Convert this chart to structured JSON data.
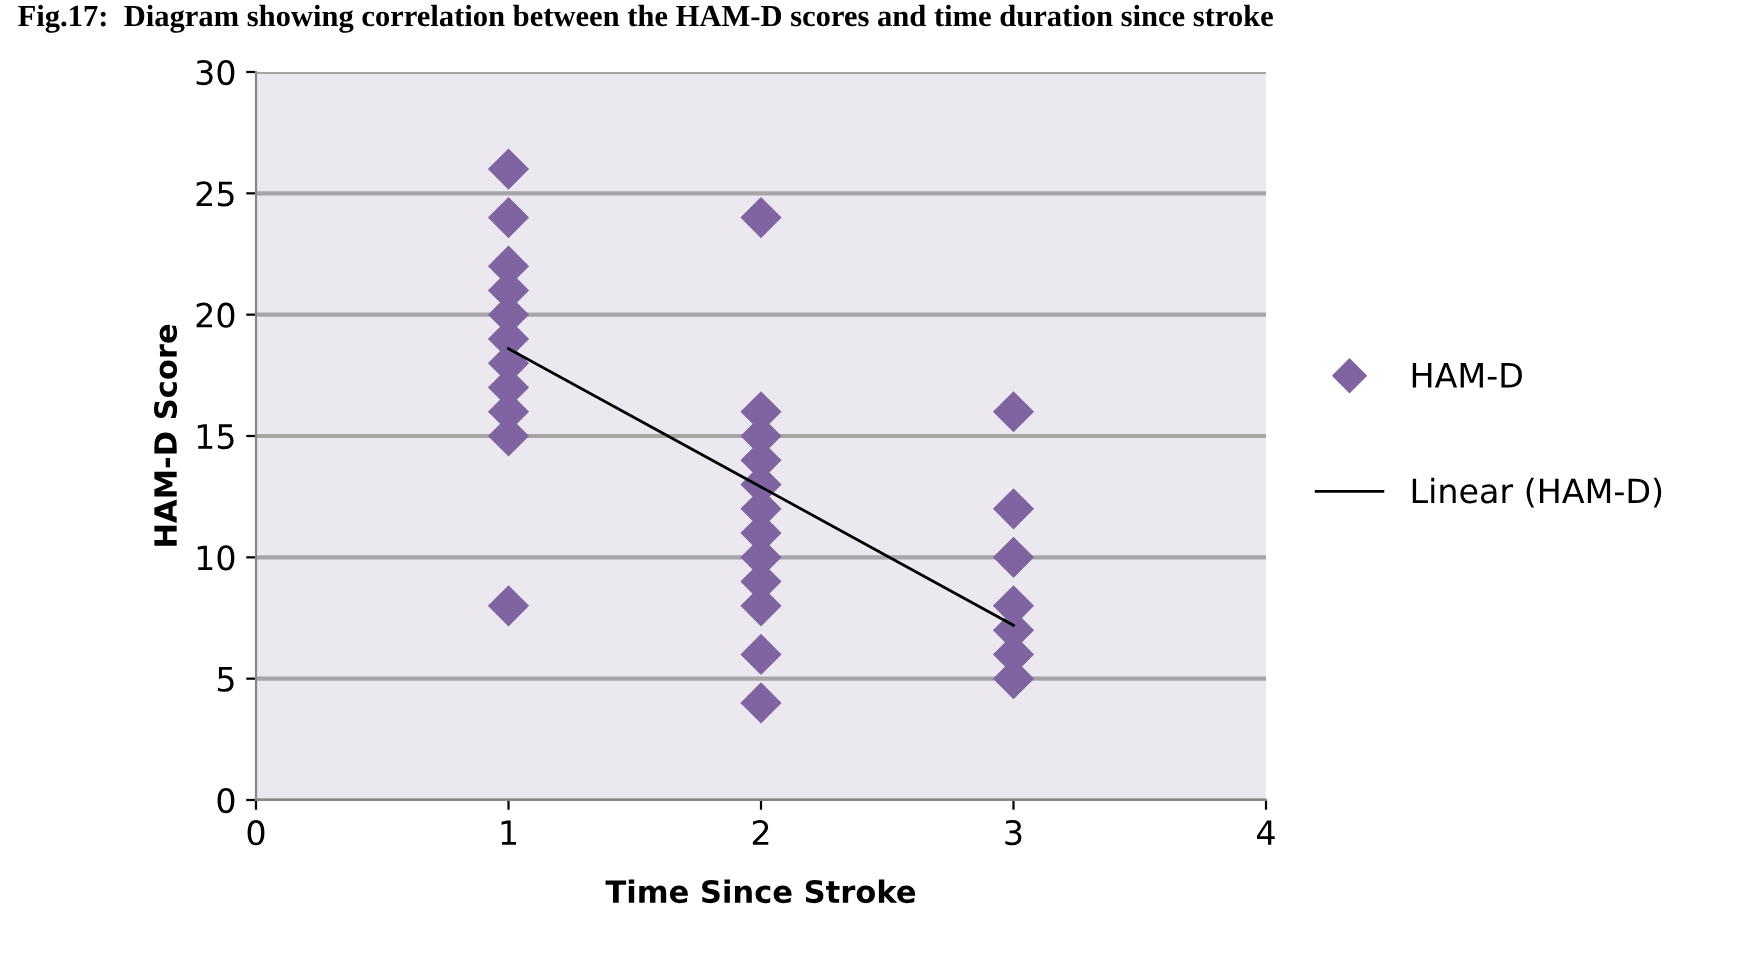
{
  "chart_data": {
    "type": "scatter",
    "title": "Fig.17:  Diagram showing correlation between the HAM-D scores and time duration since stroke",
    "xlabel": "Time Since Stroke",
    "ylabel": "HAM-D Score",
    "series": [
      {
        "name": "HAM-D",
        "color": "#8064a2",
        "marker": "diamond",
        "x": [
          1,
          1,
          1,
          1,
          1,
          1,
          1,
          1,
          1,
          1,
          1,
          2,
          2,
          2,
          2,
          2,
          2,
          2,
          2,
          2,
          2,
          2,
          2,
          3,
          3,
          3,
          3,
          3,
          3,
          3
        ],
        "values": [
          26,
          24,
          22,
          21,
          20,
          19,
          18,
          17,
          16,
          15,
          8,
          24,
          16,
          15,
          14,
          13,
          12,
          11,
          10,
          9,
          8,
          6,
          4,
          16,
          12,
          10,
          8,
          7,
          6,
          5
        ]
      },
      {
        "name": "Linear (HAM-D)",
        "type": "line",
        "color": "#000000",
        "x": [
          1,
          3
        ],
        "values": [
          18.6,
          7.2
        ]
      }
    ],
    "xlim": [
      0,
      4
    ],
    "xticks": [
      0,
      1,
      2,
      3,
      4
    ],
    "ylim": [
      0,
      30
    ],
    "yticks": [
      0,
      5,
      10,
      15,
      20,
      25,
      30
    ],
    "grid": "y",
    "legend": "right"
  }
}
